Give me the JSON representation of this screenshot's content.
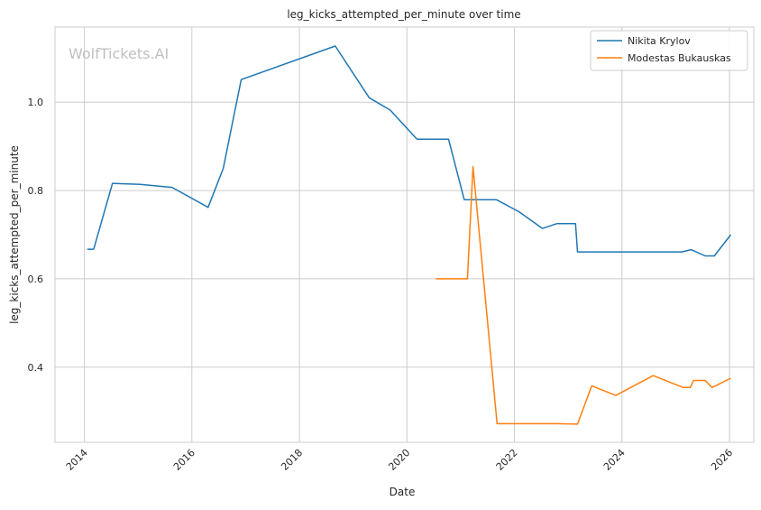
{
  "watermark": "WolfTickets.AI",
  "chart_data": {
    "type": "line",
    "title": "leg_kicks_attempted_per_minute over time",
    "xlabel": "Date",
    "ylabel": "leg_kicks_attempted_per_minute",
    "x_type": "date",
    "xlim": [
      "2013-06-15",
      "2026-06-15"
    ],
    "ylim": [
      0.23,
      1.17
    ],
    "x_ticks": [
      "2014",
      "2016",
      "2018",
      "2020",
      "2022",
      "2024",
      "2026"
    ],
    "y_ticks": [
      "0.4",
      "0.6",
      "0.8",
      "1.0"
    ],
    "grid": true,
    "legend_position": "top-right",
    "series": [
      {
        "name": "Nikita Krylov",
        "color": "#1f77b4",
        "points": [
          [
            "2014-01-20",
            0.667
          ],
          [
            "2014-03-05",
            0.667
          ],
          [
            "2014-07-10",
            0.816
          ],
          [
            "2015-01-15",
            0.814
          ],
          [
            "2015-08-20",
            0.807
          ],
          [
            "2016-04-20",
            0.762
          ],
          [
            "2016-08-01",
            0.85
          ],
          [
            "2016-12-01",
            1.051
          ],
          [
            "2018-09-01",
            1.127
          ],
          [
            "2019-04-20",
            1.01
          ],
          [
            "2019-09-10",
            0.982
          ],
          [
            "2020-03-10",
            0.916
          ],
          [
            "2020-10-10",
            0.916
          ],
          [
            "2021-01-25",
            0.779
          ],
          [
            "2021-09-01",
            0.779
          ],
          [
            "2022-02-01",
            0.752
          ],
          [
            "2022-07-10",
            0.714
          ],
          [
            "2022-10-15",
            0.725
          ],
          [
            "2023-02-20",
            0.725
          ],
          [
            "2023-03-05",
            0.661
          ],
          [
            "2025-02-10",
            0.661
          ],
          [
            "2025-04-15",
            0.666
          ],
          [
            "2025-07-20",
            0.652
          ],
          [
            "2025-09-20",
            0.652
          ],
          [
            "2026-01-10",
            0.7
          ]
        ]
      },
      {
        "name": "Modestas Bukauskas",
        "color": "#ff7f0e",
        "points": [
          [
            "2020-07-15",
            0.6
          ],
          [
            "2021-02-15",
            0.6
          ],
          [
            "2021-03-25",
            0.854
          ],
          [
            "2021-09-05",
            0.272
          ],
          [
            "2022-10-20",
            0.272
          ],
          [
            "2023-03-05",
            0.271
          ],
          [
            "2023-06-10",
            0.358
          ],
          [
            "2023-11-20",
            0.336
          ],
          [
            "2024-08-01",
            0.381
          ],
          [
            "2025-02-20",
            0.354
          ],
          [
            "2025-04-10",
            0.354
          ],
          [
            "2025-05-01",
            0.37
          ],
          [
            "2025-07-20",
            0.37
          ],
          [
            "2025-09-05",
            0.354
          ],
          [
            "2026-01-10",
            0.375
          ]
        ]
      }
    ]
  }
}
